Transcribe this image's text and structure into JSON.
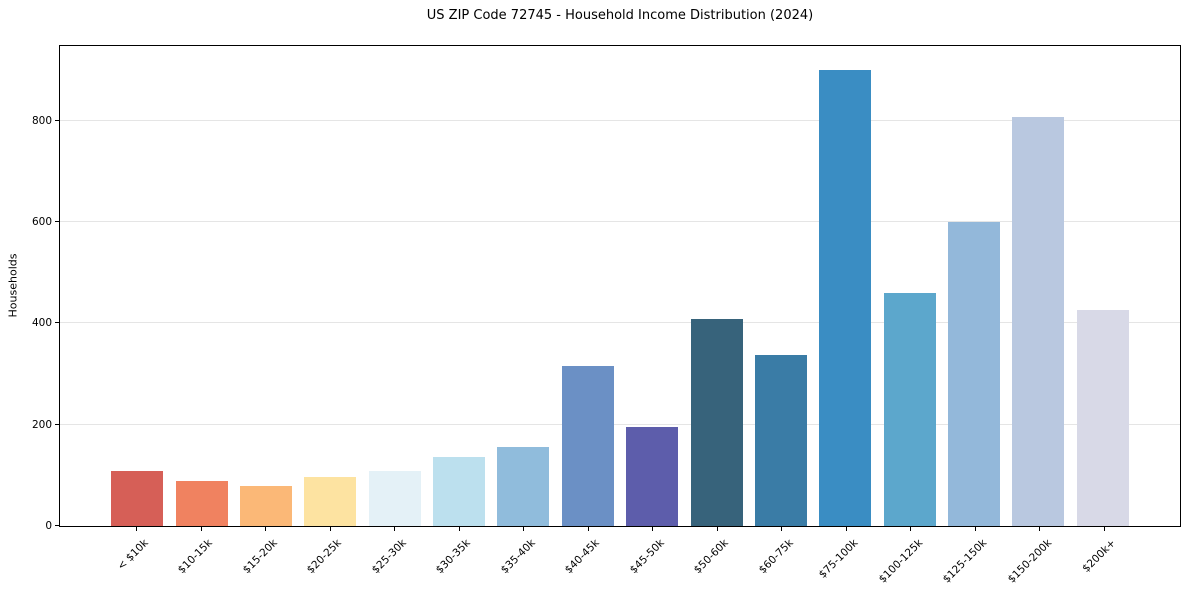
{
  "chart_data": {
    "type": "bar",
    "title": "US ZIP Code 72745 - Household Income Distribution (2024)",
    "xlabel": "",
    "ylabel": "Households",
    "categories": [
      "< $10k",
      "$10-15k",
      "$15-20k",
      "$20-25k",
      "$25-30k",
      "$30-35k",
      "$35-40k",
      "$40-45k",
      "$45-50k",
      "$50-60k",
      "$60-75k",
      "$75-100k",
      "$100-125k",
      "$125-150k",
      "$150-200k",
      "$200k+"
    ],
    "values": [
      108,
      88,
      78,
      96,
      108,
      137,
      155,
      316,
      195,
      408,
      338,
      900,
      460,
      600,
      806,
      427
    ],
    "bar_colors": [
      "#d65f57",
      "#f08260",
      "#fbb877",
      "#fde3a1",
      "#e4f1f7",
      "#bce0ee",
      "#90bcdc",
      "#6b90c5",
      "#5d5dab",
      "#37637b",
      "#3a7ca6",
      "#3a8dc3",
      "#5ca7cc",
      "#93b8da",
      "#b9c8e0",
      "#d8d9e7"
    ],
    "yticks": [
      0,
      200,
      400,
      600,
      800
    ],
    "ylim": [
      0,
      947
    ],
    "x_tick_rotation_deg": 45,
    "grid": "horizontal",
    "grid_color": "#e5e5e5",
    "spine_color": "#000000",
    "background_color": "#ffffff",
    "legend": "none"
  }
}
